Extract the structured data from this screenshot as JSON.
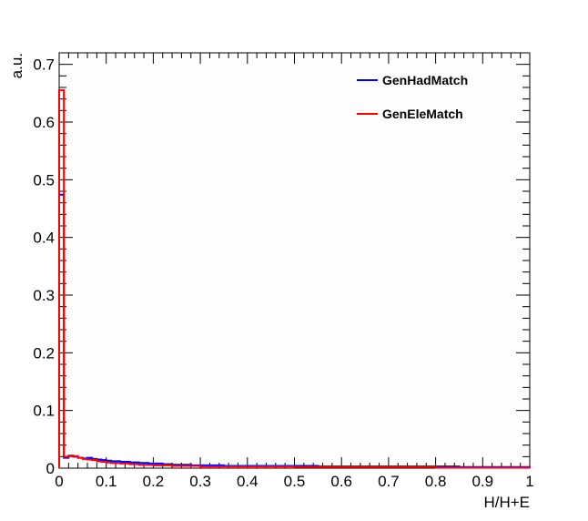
{
  "chart_data": {
    "type": "step",
    "xlabel": "H/H+E",
    "ylabel": "a.u.",
    "xlim": [
      0,
      1
    ],
    "ylim": [
      0,
      0.72
    ],
    "x_ticks": [
      0,
      0.1,
      0.2,
      0.3,
      0.4,
      0.5,
      0.6,
      0.7,
      0.8,
      0.9,
      1
    ],
    "x_tick_labels": [
      "0",
      "0.1",
      "0.2",
      "0.3",
      "0.4",
      "0.5",
      "0.6",
      "0.7",
      "0.8",
      "0.9",
      "1"
    ],
    "y_ticks": [
      0,
      0.1,
      0.2,
      0.3,
      0.4,
      0.5,
      0.6,
      0.7
    ],
    "y_tick_labels": [
      "0",
      "0.1",
      "0.2",
      "0.3",
      "0.4",
      "0.5",
      "0.6",
      "0.7"
    ],
    "bin_edges": [
      0,
      0.01,
      0.02,
      0.03,
      0.04,
      0.05,
      0.06,
      0.07,
      0.08,
      0.09,
      0.1,
      0.11,
      0.12,
      0.13,
      0.14,
      0.15,
      0.16,
      0.17,
      0.18,
      0.19,
      0.2,
      0.22,
      0.24,
      0.26,
      0.28,
      0.3,
      0.35,
      0.4,
      0.45,
      0.5,
      0.55,
      0.6,
      0.65,
      0.7,
      0.75,
      0.8,
      0.85,
      0.9,
      0.95,
      1.0
    ],
    "series": [
      {
        "name": "GenHadMatch",
        "color": "#0000ff",
        "values": [
          0.474,
          0.018,
          0.021,
          0.02,
          0.018,
          0.017,
          0.018,
          0.016,
          0.015,
          0.014,
          0.013,
          0.012,
          0.012,
          0.011,
          0.011,
          0.01,
          0.01,
          0.009,
          0.009,
          0.008,
          0.008,
          0.007,
          0.006,
          0.006,
          0.005,
          0.005,
          0.004,
          0.004,
          0.004,
          0.004,
          0.003,
          0.003,
          0.003,
          0.003,
          0.003,
          0.003,
          0.002,
          0.002,
          0.002
        ]
      },
      {
        "name": "GenEleMatch",
        "color": "#ff0000",
        "values": [
          0.655,
          0.02,
          0.022,
          0.021,
          0.018,
          0.016,
          0.015,
          0.014,
          0.012,
          0.011,
          0.01,
          0.009,
          0.009,
          0.008,
          0.008,
          0.007,
          0.007,
          0.006,
          0.006,
          0.006,
          0.005,
          0.005,
          0.004,
          0.004,
          0.004,
          0.003,
          0.003,
          0.003,
          0.003,
          0.002,
          0.002,
          0.002,
          0.002,
          0.002,
          0.002,
          0.001,
          0.001,
          0.001,
          0.001
        ]
      }
    ],
    "legend_position": "top-right",
    "grid": false
  }
}
